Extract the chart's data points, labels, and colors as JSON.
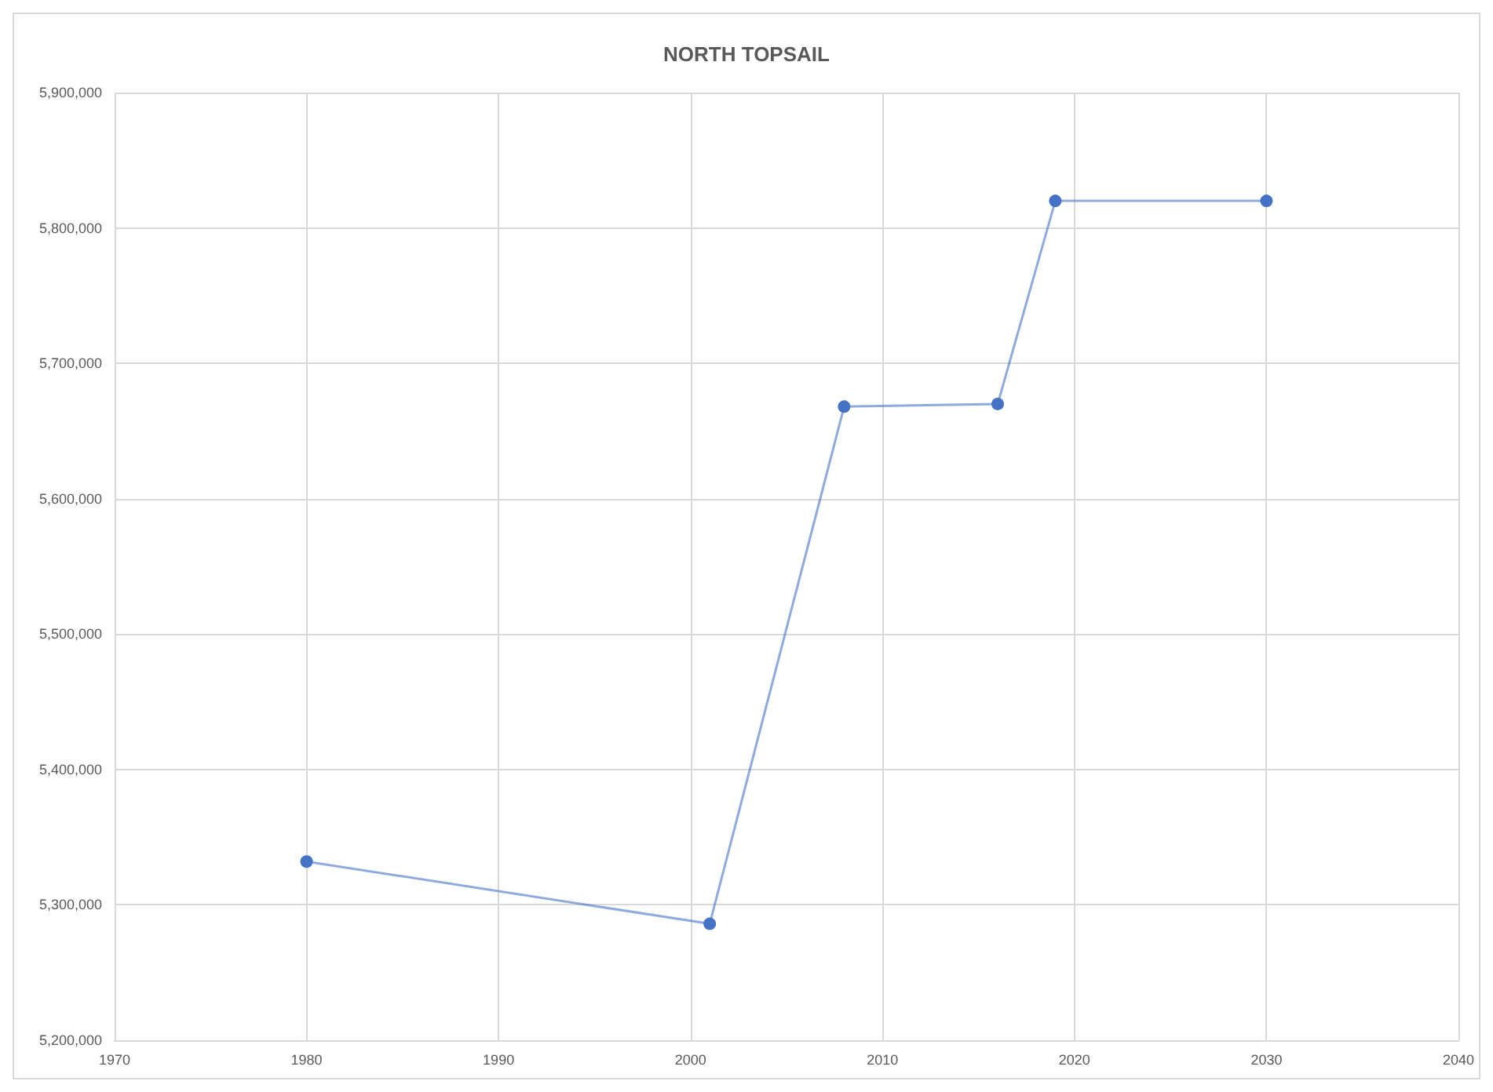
{
  "chart_data": {
    "type": "line",
    "title": "NORTH TOPSAIL",
    "x": [
      1980,
      2001,
      2008,
      2016,
      2019,
      2030
    ],
    "series": [
      {
        "color": "#4472c4",
        "values": [
          5332000,
          5286000,
          5668000,
          5670000,
          5820000,
          5820000
        ]
      }
    ],
    "xlim": [
      1970,
      2040
    ],
    "xticks": [
      1970,
      1980,
      1990,
      2000,
      2010,
      2020,
      2030,
      2040
    ],
    "ylim": [
      5200000,
      5900000
    ],
    "yticks": [
      {
        "value": 5200000,
        "label": "5,200,000"
      },
      {
        "value": 5300000,
        "label": "5,300,000"
      },
      {
        "value": 5400000,
        "label": "5,400,000"
      },
      {
        "value": 5500000,
        "label": "5,500,000"
      },
      {
        "value": 5600000,
        "label": "5,600,000"
      },
      {
        "value": 5700000,
        "label": "5,700,000"
      },
      {
        "value": 5800000,
        "label": "5,800,000"
      },
      {
        "value": 5900000,
        "label": "5,900,000"
      }
    ],
    "grid": true,
    "marker": "circle",
    "line_style": "solid"
  }
}
